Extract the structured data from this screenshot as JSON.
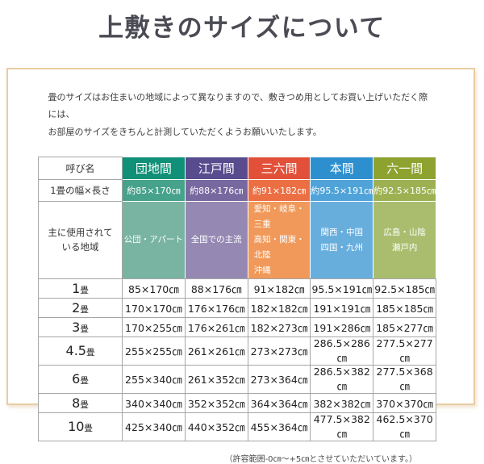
{
  "page": {
    "title": "上敷きのサイズについて",
    "description": "畳のサイズはお住まいの地域によって異なりますので、敷きつめ用としてお買い上げいただく際には、\nお部屋のサイズをきちんと計測していただくようお願いいたします。",
    "footnote": "（許容範囲-0㎝～+5㎝とさせていただいています。）"
  },
  "theme": {
    "frame_border": "#e9cda4",
    "plain_cell_border": "#a6a6a6"
  },
  "table": {
    "corner_label": "呼び名",
    "width_row_label": "1畳の幅×長さ",
    "region_row_label": "主に使用されて\nいる地域",
    "columns": [
      {
        "name": "団地間",
        "tatami_size": "約85×170㎝",
        "regions": "公団・アパート",
        "colors": [
          "#0f9077",
          "#47a28b",
          "#79b3a1"
        ]
      },
      {
        "name": "江戸間",
        "tatami_size": "約88×176㎝",
        "regions": "全国での主流",
        "colors": [
          "#584b8e",
          "#77699f",
          "#9589b3"
        ]
      },
      {
        "name": "三六間",
        "tatami_size": "約91×182㎝",
        "regions": "愛知・岐阜・三重\n高知・関東・北陸\n沖縄",
        "colors": [
          "#e2503a",
          "#ec6f44",
          "#f0995a"
        ]
      },
      {
        "name": "本間",
        "tatami_size": "約95.5×191㎝",
        "regions": "関西・中国\n四国・九州",
        "colors": [
          "#2e8fce",
          "#4fa3d9",
          "#68aedd"
        ]
      },
      {
        "name": "六一間",
        "tatami_size": "約92.5×185㎝",
        "regions": "広島・山陰\n瀬戸内",
        "colors": [
          "#8da22f",
          "#9db153",
          "#aabd6e"
        ]
      }
    ],
    "size_rows": [
      {
        "num": "1",
        "unit": "畳",
        "values": [
          "85×170㎝",
          "88×176㎝",
          "91×182㎝",
          "95.5×191㎝",
          "92.5×185㎝"
        ]
      },
      {
        "num": "2",
        "unit": "畳",
        "values": [
          "170×170㎝",
          "176×176㎝",
          "182×182㎝",
          "191×191㎝",
          "185×185㎝"
        ]
      },
      {
        "num": "3",
        "unit": "畳",
        "values": [
          "170×255㎝",
          "176×261㎝",
          "182×273㎝",
          "191×286㎝",
          "185×277㎝"
        ]
      },
      {
        "num": "4.5",
        "unit": "畳",
        "values": [
          "255×255㎝",
          "261×261㎝",
          "273×273㎝",
          "286.5×286㎝",
          "277.5×277㎝"
        ]
      },
      {
        "num": "6",
        "unit": "畳",
        "values": [
          "255×340㎝",
          "261×352㎝",
          "273×364㎝",
          "286.5×382㎝",
          "277.5×368㎝"
        ]
      },
      {
        "num": "8",
        "unit": "畳",
        "values": [
          "340×340㎝",
          "352×352㎝",
          "364×364㎝",
          "382×382㎝",
          "370×370㎝"
        ]
      },
      {
        "num": "10",
        "unit": "畳",
        "values": [
          "425×340㎝",
          "440×352㎝",
          "455×364㎝",
          "477.5×382㎝",
          "462.5×370㎝"
        ]
      }
    ]
  }
}
